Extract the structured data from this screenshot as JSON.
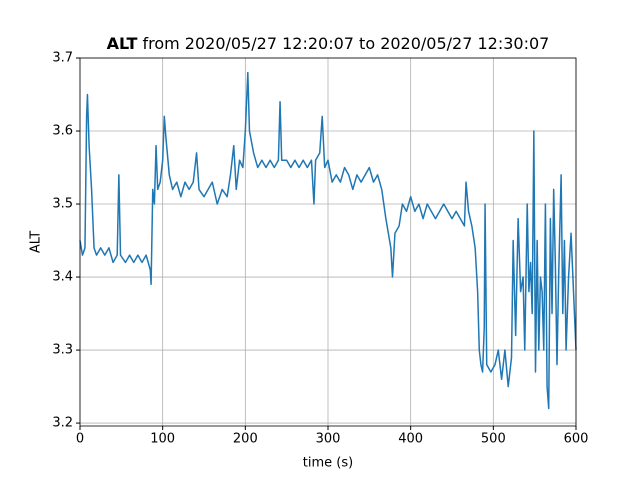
{
  "chart_data": {
    "type": "line",
    "title_bold": "ALT",
    "title": "from 2020/05/27 12:20:07 to 2020/05/27 12:30:07",
    "xlabel": "time (s)",
    "ylabel": "ALT",
    "xlim": [
      0,
      600
    ],
    "ylim": [
      3.196,
      3.7
    ],
    "xticks": [
      0,
      100,
      200,
      300,
      400,
      500,
      600
    ],
    "yticks": [
      3.2,
      3.3,
      3.4,
      3.5,
      3.6,
      3.7
    ],
    "grid": true,
    "series": [
      {
        "name": "ALT",
        "color": "#1f77b4",
        "x": [
          0,
          3,
          6,
          8,
          9,
          11,
          14,
          17,
          20,
          25,
          30,
          35,
          40,
          45,
          47,
          49,
          55,
          60,
          65,
          70,
          75,
          80,
          85,
          86,
          88,
          90,
          92,
          94,
          97,
          100,
          102,
          104,
          108,
          112,
          117,
          122,
          127,
          132,
          137,
          141,
          144,
          150,
          155,
          160,
          166,
          172,
          178,
          182,
          186,
          189,
          193,
          197,
          200,
          203,
          205,
          210,
          215,
          220,
          225,
          230,
          235,
          240,
          242,
          244,
          250,
          255,
          260,
          265,
          270,
          275,
          280,
          283,
          285,
          290,
          293,
          296,
          300,
          305,
          310,
          315,
          320,
          325,
          330,
          335,
          340,
          345,
          350,
          355,
          360,
          365,
          370,
          373,
          376,
          378,
          381,
          386,
          390,
          395,
          400,
          405,
          410,
          415,
          420,
          425,
          430,
          435,
          440,
          445,
          450,
          455,
          460,
          465,
          467,
          470,
          474,
          478,
          481,
          483,
          485,
          487,
          489,
          490,
          492,
          497,
          502,
          506,
          510,
          514,
          518,
          522,
          524,
          527,
          530,
          533,
          536,
          538,
          541,
          543,
          545,
          547,
          549,
          551,
          553,
          555,
          557,
          559,
          561,
          563,
          565,
          567,
          569,
          571,
          573,
          575,
          577,
          579,
          582,
          584,
          586,
          588,
          591,
          594,
          597,
          600
        ],
        "values": [
          3.45,
          3.43,
          3.44,
          3.62,
          3.65,
          3.58,
          3.52,
          3.44,
          3.43,
          3.44,
          3.43,
          3.44,
          3.42,
          3.43,
          3.54,
          3.43,
          3.42,
          3.43,
          3.42,
          3.43,
          3.42,
          3.43,
          3.41,
          3.39,
          3.52,
          3.5,
          3.58,
          3.52,
          3.53,
          3.56,
          3.62,
          3.59,
          3.54,
          3.52,
          3.53,
          3.51,
          3.53,
          3.52,
          3.53,
          3.57,
          3.52,
          3.51,
          3.52,
          3.53,
          3.5,
          3.52,
          3.51,
          3.54,
          3.58,
          3.52,
          3.56,
          3.55,
          3.6,
          3.68,
          3.6,
          3.57,
          3.55,
          3.56,
          3.55,
          3.56,
          3.55,
          3.56,
          3.64,
          3.56,
          3.56,
          3.55,
          3.56,
          3.55,
          3.56,
          3.55,
          3.56,
          3.5,
          3.56,
          3.57,
          3.62,
          3.55,
          3.56,
          3.53,
          3.54,
          3.53,
          3.55,
          3.54,
          3.52,
          3.54,
          3.53,
          3.54,
          3.55,
          3.53,
          3.54,
          3.52,
          3.48,
          3.46,
          3.44,
          3.4,
          3.46,
          3.47,
          3.5,
          3.49,
          3.51,
          3.49,
          3.5,
          3.48,
          3.5,
          3.49,
          3.48,
          3.49,
          3.5,
          3.49,
          3.48,
          3.49,
          3.48,
          3.47,
          3.53,
          3.49,
          3.47,
          3.44,
          3.38,
          3.3,
          3.28,
          3.27,
          3.33,
          3.5,
          3.28,
          3.27,
          3.28,
          3.3,
          3.26,
          3.3,
          3.25,
          3.29,
          3.45,
          3.32,
          3.48,
          3.38,
          3.4,
          3.3,
          3.5,
          3.38,
          3.42,
          3.35,
          3.6,
          3.27,
          3.45,
          3.3,
          3.4,
          3.38,
          3.3,
          3.5,
          3.25,
          3.22,
          3.48,
          3.35,
          3.52,
          3.42,
          3.28,
          3.4,
          3.54,
          3.35,
          3.45,
          3.3,
          3.4,
          3.46,
          3.38,
          3.3
        ]
      }
    ]
  }
}
